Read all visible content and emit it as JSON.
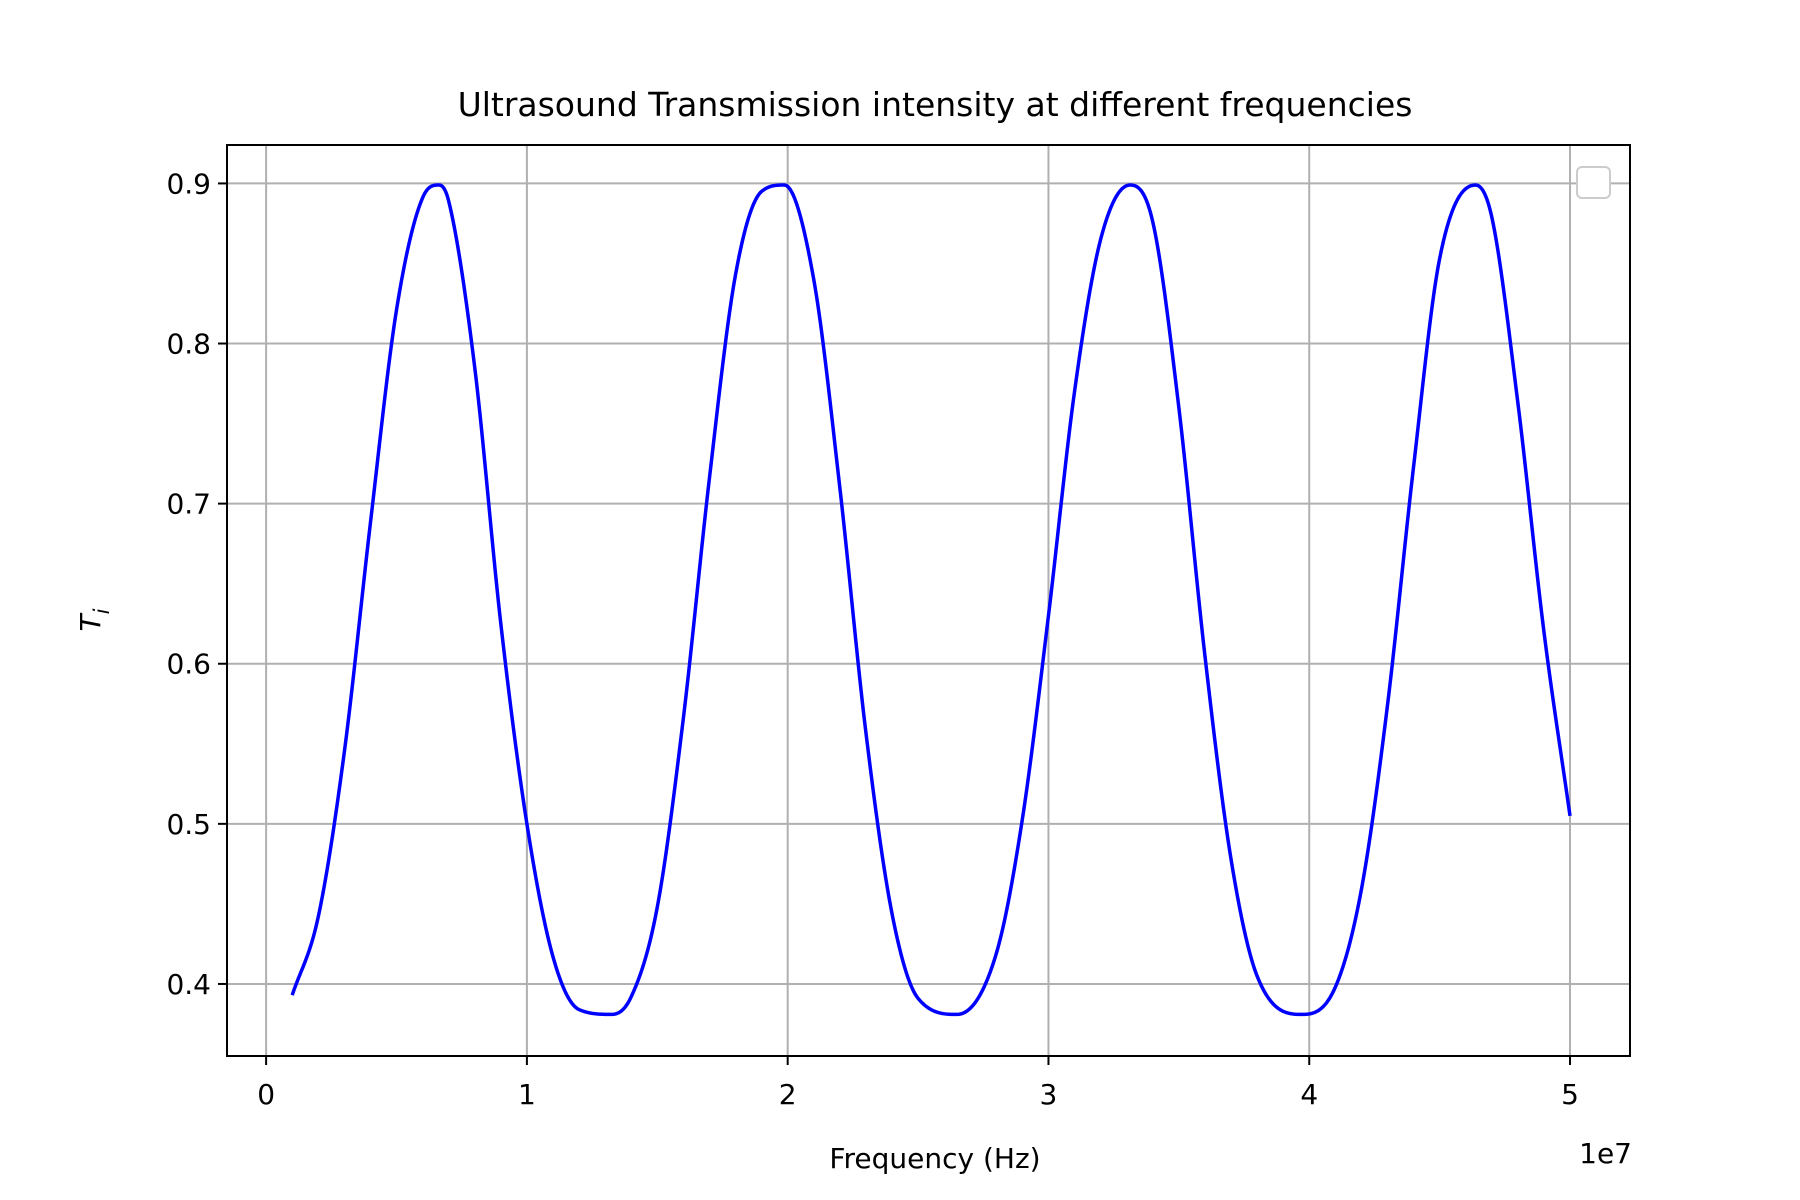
{
  "chart_data": {
    "type": "line",
    "title": "Ultrasound Transmission intensity at different frequencies",
    "xlabel": "Frequency (Hz)",
    "ylabel_main": "T",
    "ylabel_sub": "i",
    "x_offset_label": "1e7",
    "x_scale": 10000000,
    "xlim": [
      -1500000,
      52300000
    ],
    "ylim": [
      0.355,
      0.924
    ],
    "x_ticks": [
      0,
      10000000,
      20000000,
      30000000,
      40000000,
      50000000
    ],
    "x_tick_labels": [
      "0",
      "1",
      "2",
      "3",
      "4",
      "5"
    ],
    "y_ticks": [
      0.4,
      0.5,
      0.6,
      0.7,
      0.8,
      0.9
    ],
    "y_tick_labels": [
      "0.4",
      "0.5",
      "0.6",
      "0.7",
      "0.8",
      "0.9"
    ],
    "grid": true,
    "legend": {
      "placement": "upper right",
      "entries": []
    },
    "series": [
      {
        "color": "#0000ff",
        "x": [
          1000000,
          2000000,
          3000000,
          4000000,
          5000000,
          6000000,
          6625000,
          7000000,
          8000000,
          9000000,
          10000000,
          11000000,
          12000000,
          13250000,
          14000000,
          15000000,
          16000000,
          17000000,
          18000000,
          19000000,
          19875000,
          21000000,
          22000000,
          23000000,
          24000000,
          25000000,
          26500000,
          28000000,
          29000000,
          30000000,
          31000000,
          32000000,
          33125000,
          34000000,
          35000000,
          36000000,
          37000000,
          38000000,
          39750000,
          41000000,
          42000000,
          43000000,
          44000000,
          45000000,
          46375000,
          47000000,
          48000000,
          49000000,
          50000000
        ],
        "y": [
          0.393,
          0.442,
          0.545,
          0.688,
          0.821,
          0.891,
          0.899,
          0.889,
          0.785,
          0.625,
          0.5,
          0.417,
          0.384,
          0.381,
          0.392,
          0.448,
          0.566,
          0.716,
          0.843,
          0.895,
          0.899,
          0.84,
          0.71,
          0.557,
          0.444,
          0.391,
          0.381,
          0.419,
          0.503,
          0.63,
          0.77,
          0.865,
          0.899,
          0.876,
          0.76,
          0.605,
          0.478,
          0.405,
          0.381,
          0.398,
          0.459,
          0.574,
          0.723,
          0.853,
          0.899,
          0.879,
          0.763,
          0.62,
          0.505
        ]
      }
    ]
  }
}
